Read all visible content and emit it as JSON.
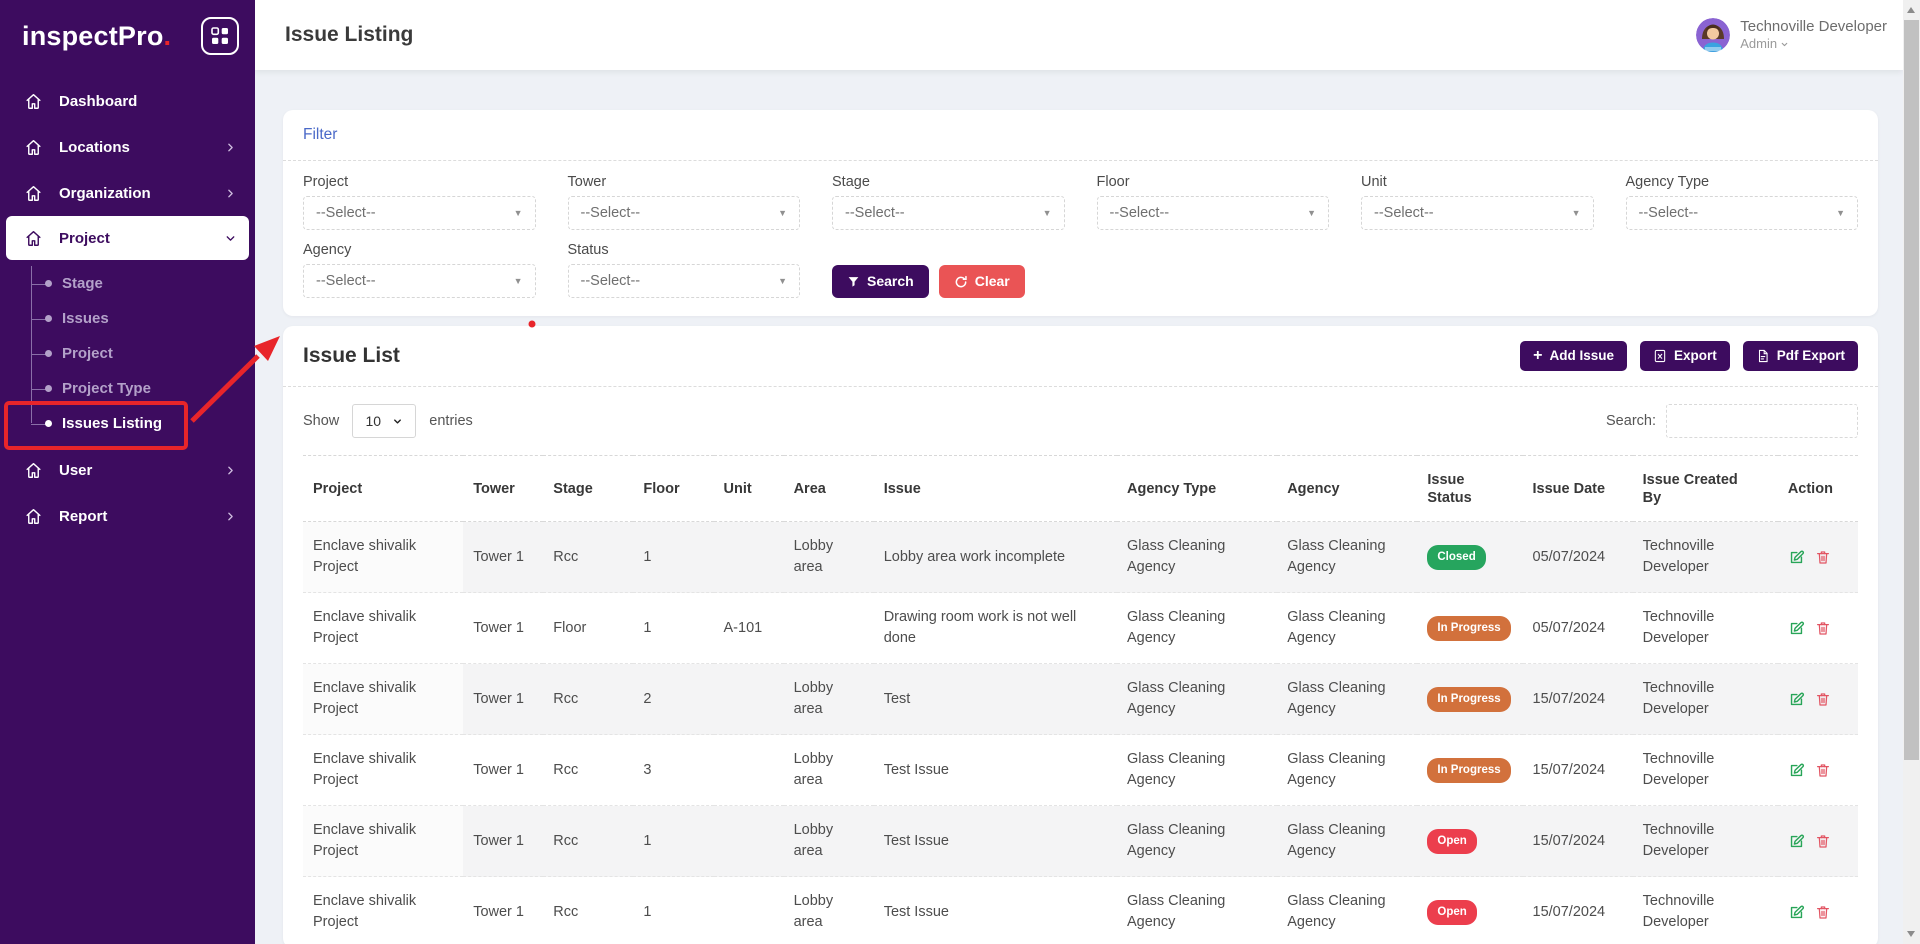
{
  "app": {
    "logo_text": "inspectPro",
    "logo_dot": "."
  },
  "sidebar": {
    "menu": [
      {
        "label": "Dashboard",
        "expandable": false,
        "expanded": false,
        "active": false
      },
      {
        "label": "Locations",
        "expandable": true,
        "expanded": false,
        "active": false
      },
      {
        "label": "Organization",
        "expandable": true,
        "expanded": false,
        "active": false
      },
      {
        "label": "Project",
        "expandable": true,
        "expanded": true,
        "active": true
      },
      {
        "label": "User",
        "expandable": true,
        "expanded": false,
        "active": false
      },
      {
        "label": "Report",
        "expandable": true,
        "expanded": false,
        "active": false
      }
    ],
    "submenu_parent": "Project",
    "submenu": [
      {
        "label": "Stage",
        "active": false
      },
      {
        "label": "Issues",
        "active": false
      },
      {
        "label": "Project",
        "active": false
      },
      {
        "label": "Project Type",
        "active": false
      },
      {
        "label": "Issues Listing",
        "active": true
      }
    ]
  },
  "header": {
    "title": "Issue Listing",
    "user": {
      "name": "Technoville Developer",
      "role": "Admin"
    }
  },
  "filter": {
    "title": "Filter",
    "row1": [
      {
        "label": "Project",
        "value": "--Select--"
      },
      {
        "label": "Tower",
        "value": "--Select--"
      },
      {
        "label": "Stage",
        "value": "--Select--"
      },
      {
        "label": "Floor",
        "value": "--Select--"
      },
      {
        "label": "Unit",
        "value": "--Select--"
      },
      {
        "label": "Agency Type",
        "value": "--Select--"
      }
    ],
    "row2": [
      {
        "label": "Agency",
        "value": "--Select--"
      },
      {
        "label": "Status",
        "value": "--Select--"
      }
    ],
    "search_button": "Search",
    "clear_button": "Clear"
  },
  "issue_list": {
    "title": "Issue List",
    "add_button": "Add Issue",
    "export_button": "Export",
    "pdf_export_button": "Pdf Export",
    "show_label": "Show",
    "page_size": "10",
    "entries_label": "entries",
    "search_label": "Search:",
    "search_value": "",
    "columns": [
      "Project",
      "Tower",
      "Stage",
      "Floor",
      "Unit",
      "Area",
      "Issue",
      "Agency Type",
      "Agency",
      "Issue Status",
      "Issue Date",
      "Issue Created By",
      "Action"
    ],
    "rows": [
      {
        "project": "Enclave shivalik Project",
        "tower": "Tower 1",
        "stage": "Rcc",
        "floor": "1",
        "unit": "",
        "area": "Lobby area",
        "issue": "Lobby area work incomplete",
        "agency_type": "Glass Cleaning Agency",
        "agency": "Glass Cleaning Agency",
        "status": "Closed",
        "date": "05/07/2024",
        "created_by": "Technoville Developer"
      },
      {
        "project": "Enclave shivalik Project",
        "tower": "Tower 1",
        "stage": "Floor",
        "floor": "1",
        "unit": "A-101",
        "area": "",
        "issue": "Drawing room work is not well done",
        "agency_type": "Glass Cleaning Agency",
        "agency": "Glass Cleaning Agency",
        "status": "In Progress",
        "date": "05/07/2024",
        "created_by": "Technoville Developer"
      },
      {
        "project": "Enclave shivalik Project",
        "tower": "Tower 1",
        "stage": "Rcc",
        "floor": "2",
        "unit": "",
        "area": "Lobby area",
        "issue": "Test",
        "agency_type": "Glass Cleaning Agency",
        "agency": "Glass Cleaning Agency",
        "status": "In Progress",
        "date": "15/07/2024",
        "created_by": "Technoville Developer"
      },
      {
        "project": "Enclave shivalik Project",
        "tower": "Tower 1",
        "stage": "Rcc",
        "floor": "3",
        "unit": "",
        "area": "Lobby area",
        "issue": "Test Issue",
        "agency_type": "Glass Cleaning Agency",
        "agency": "Glass Cleaning Agency",
        "status": "In Progress",
        "date": "15/07/2024",
        "created_by": "Technoville Developer"
      },
      {
        "project": "Enclave shivalik Project",
        "tower": "Tower 1",
        "stage": "Rcc",
        "floor": "1",
        "unit": "",
        "area": "Lobby area",
        "issue": "Test Issue",
        "agency_type": "Glass Cleaning Agency",
        "agency": "Glass Cleaning Agency",
        "status": "Open",
        "date": "15/07/2024",
        "created_by": "Technoville Developer"
      },
      {
        "project": "Enclave shivalik Project",
        "tower": "Tower 1",
        "stage": "Rcc",
        "floor": "1",
        "unit": "",
        "area": "Lobby area",
        "issue": "Test Issue",
        "agency_type": "Glass Cleaning Agency",
        "agency": "Glass Cleaning Agency",
        "status": "Open",
        "date": "15/07/2024",
        "created_by": "Technoville Developer"
      }
    ],
    "status_colors": {
      "Closed": "#26a55e",
      "In Progress": "#d2713c",
      "Open": "#ec3e4d"
    },
    "sorted_column": "Project"
  },
  "annotation": {
    "color": "#e8252a"
  }
}
